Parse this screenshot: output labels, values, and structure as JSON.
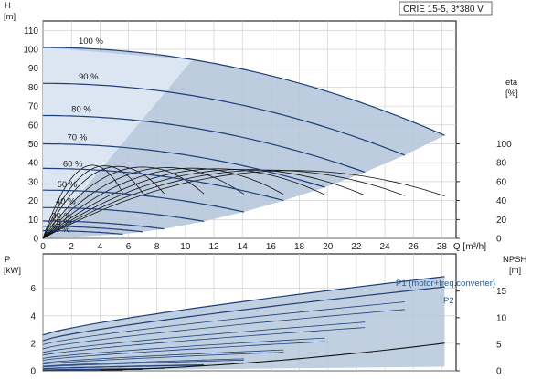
{
  "model_label": "CRIE 15-5, 3*380 V",
  "colors": {
    "curve": "#1f3f7a",
    "shade": "#b6c8dc",
    "shade_light": "#e2ecf6",
    "grid": "#c9c9c9",
    "axis": "#000000",
    "eff": "#111111",
    "legend_text": "#2a5a8a"
  },
  "chart_data": [
    {
      "type": "line",
      "ylabel": "H",
      "ylabel_unit": "[m]",
      "y2label": "eta",
      "y2label_unit": "[%]",
      "xlabel_inline": "Q [m³/h]",
      "xlim": [
        0,
        29
      ],
      "ylim": [
        0,
        115
      ],
      "x_ticks": [
        "0",
        "2",
        "4",
        "6",
        "8",
        "10",
        "12",
        "14",
        "16",
        "18",
        "20",
        "22",
        "24",
        "26",
        "28"
      ],
      "y_ticks": [
        "0",
        "10",
        "20",
        "30",
        "40",
        "50",
        "60",
        "70",
        "80",
        "90",
        "100",
        "110"
      ],
      "y2_ticks": [
        "0",
        "20",
        "40",
        "60",
        "80",
        "100"
      ],
      "y2_scale": {
        "value_per_h": 2,
        "offset_h": 0
      },
      "head_curves": [
        {
          "label": "100 %",
          "label_x": 2.5,
          "label_y": 103,
          "shutoff": 101,
          "qmax": 28.2,
          "hend": 54.5
        },
        {
          "label": "90 %",
          "label_x": 2.5,
          "label_y": 84,
          "shutoff": 82,
          "qmax": 25.4,
          "hend": 44
        },
        {
          "label": "80 %",
          "label_x": 2.0,
          "label_y": 67,
          "shutoff": 65,
          "qmax": 22.6,
          "hend": 35
        },
        {
          "label": "70 %",
          "label_x": 1.7,
          "label_y": 52,
          "shutoff": 50,
          "qmax": 19.8,
          "hend": 27
        },
        {
          "label": "60 %",
          "label_x": 1.4,
          "label_y": 38,
          "shutoff": 37,
          "qmax": 16.9,
          "hend": 20
        },
        {
          "label": "50 %",
          "label_x": 1.0,
          "label_y": 27,
          "shutoff": 25.5,
          "qmax": 14.1,
          "hend": 14
        },
        {
          "label": "40 %",
          "label_x": 0.9,
          "label_y": 18,
          "shutoff": 16.3,
          "qmax": 11.3,
          "hend": 9
        },
        {
          "label": "30 %",
          "label_x": 0.6,
          "label_y": 10.5,
          "shutoff": 9.2,
          "qmax": 8.5,
          "hend": 5
        },
        {
          "label": "25 %",
          "label_x": 0.6,
          "label_y": 7,
          "shutoff": 6.4,
          "qmax": 7.0,
          "hend": 3.5
        },
        {
          "label": "20 %",
          "label_x": 0.5,
          "label_y": 3.5,
          "shutoff": 4.1,
          "qmax": 5.6,
          "hend": 2.2
        }
      ]
    },
    {
      "type": "line",
      "ylabel": "P",
      "ylabel_unit": "[kW]",
      "y2label": "NPSH",
      "y2label_unit": "[m]",
      "xlim": [
        0,
        29
      ],
      "ylim": [
        0,
        8.5
      ],
      "y_ticks": [
        "0",
        "2",
        "4",
        "6"
      ],
      "y2_ticks": [
        "0",
        "5",
        "10",
        "15"
      ],
      "y2_max": 22,
      "series": [
        {
          "name": "P1 (motor+freq.converter)",
          "p0": 2.6,
          "p1": 6.85,
          "qmax": 28.2
        },
        {
          "name": "P2",
          "p0": 2.2,
          "p1": 6.1,
          "qmax": 28.2
        }
      ],
      "npsh": {
        "q0": 4,
        "v0": 0.2,
        "q1": 28.2,
        "v1": 5.2
      }
    }
  ]
}
